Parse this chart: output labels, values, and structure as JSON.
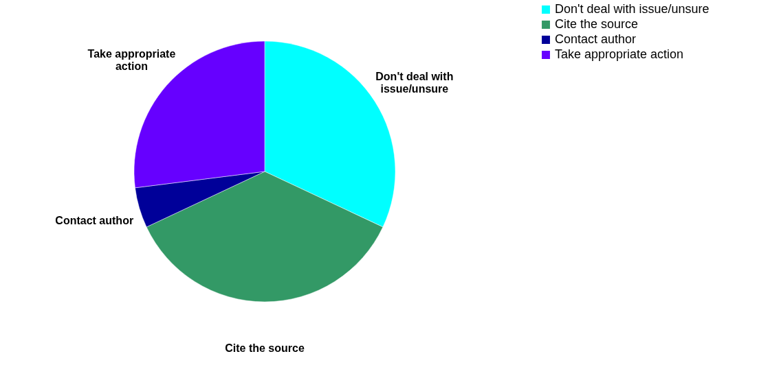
{
  "chart_data": {
    "type": "pie",
    "categories": [
      "Don't deal with issue/unsure",
      "Cite the source",
      "Contact author",
      "Take appropriate action"
    ],
    "values": [
      32,
      36,
      5,
      27
    ],
    "colors": [
      "#00ffff",
      "#339966",
      "#000099",
      "#6600ff"
    ],
    "legend": "right"
  }
}
